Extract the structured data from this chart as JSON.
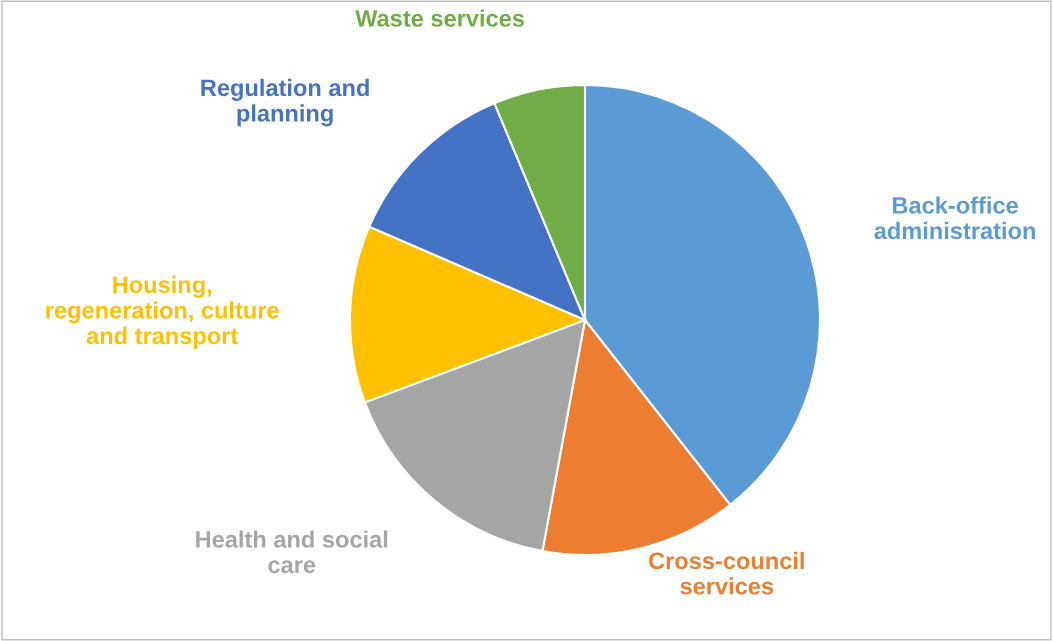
{
  "chart_data": {
    "type": "pie",
    "categories": [
      "Back-office\nadministration",
      "Cross-council\nservices",
      "Health and social\ncare",
      "Housing,\nregeneration, culture\nand transport",
      "Regulation and\nplanning",
      "Waste services"
    ],
    "values": [
      39.4,
      13.5,
      16.4,
      12.2,
      12.2,
      6.3
    ],
    "colors": [
      "#5b9bd5",
      "#ed7d31",
      "#a5a5a5",
      "#ffc000",
      "#4472c4",
      "#70ad47"
    ],
    "legend": false
  }
}
